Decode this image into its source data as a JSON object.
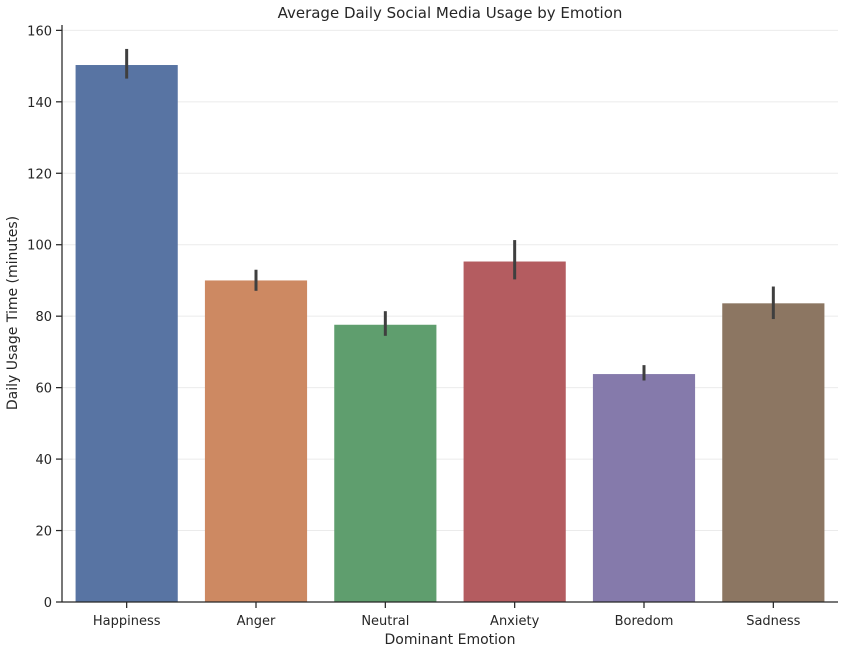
{
  "chart_data": {
    "type": "bar",
    "title": "Average Daily Social Media Usage by Emotion",
    "xlabel": "Dominant Emotion",
    "ylabel": "Daily Usage Time (minutes)",
    "categories": [
      "Happiness",
      "Anger",
      "Neutral",
      "Anxiety",
      "Boredom",
      "Sadness"
    ],
    "values": [
      150.3,
      90.0,
      77.6,
      95.3,
      63.8,
      83.6
    ],
    "error_low": [
      146.5,
      87.1,
      74.5,
      90.3,
      62.0,
      79.2
    ],
    "error_high": [
      154.8,
      93.0,
      81.4,
      101.3,
      66.3,
      88.3
    ],
    "colors": [
      "#5874a3",
      "#cd8962",
      "#5f9e6e",
      "#b45c60",
      "#857aab",
      "#8c7662"
    ],
    "yticks": [
      0,
      20,
      40,
      60,
      80,
      100,
      120,
      140,
      160
    ],
    "ylim": [
      0,
      161.5
    ],
    "grid": true
  }
}
